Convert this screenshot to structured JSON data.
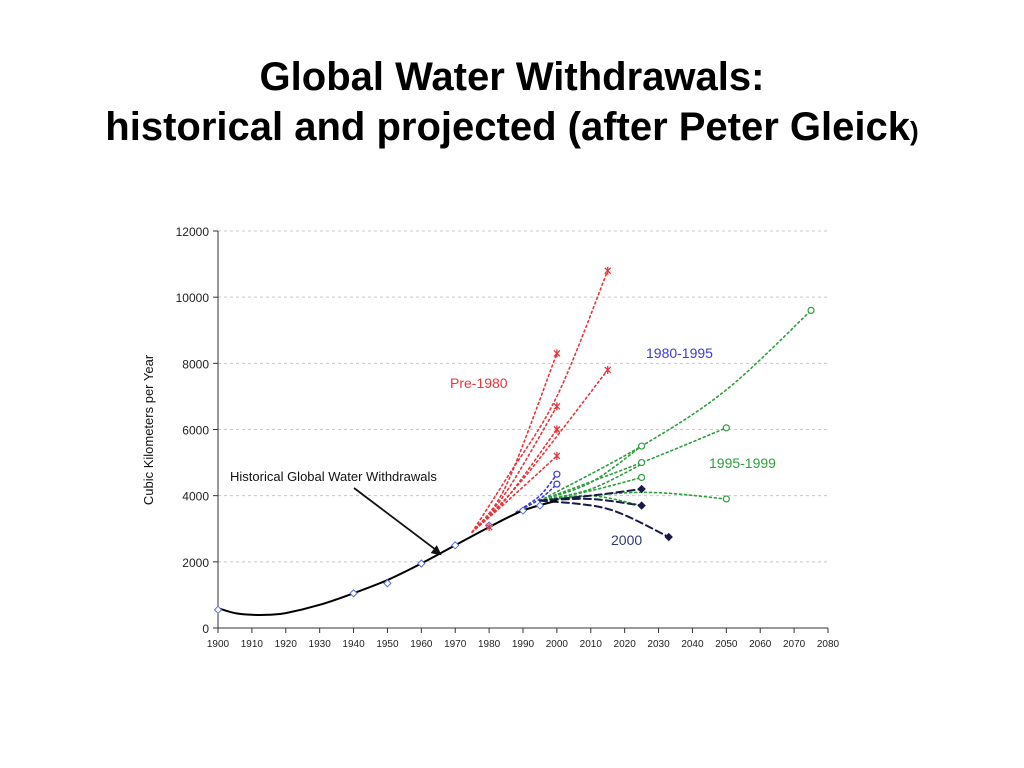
{
  "slide": {
    "title_line1": "Global Water Withdrawals:",
    "title_line2": "historical and projected (after Peter Gleick",
    "title_close_paren": ")"
  },
  "chart_data": {
    "type": "line",
    "title": "",
    "xlabel": "",
    "ylabel": "Cubic Kilometers per Year",
    "xlim": [
      1900,
      2080
    ],
    "ylim": [
      0,
      12000
    ],
    "x_ticks": [
      1900,
      1910,
      1920,
      1930,
      1940,
      1950,
      1960,
      1970,
      1980,
      1990,
      2000,
      2010,
      2020,
      2030,
      2040,
      2050,
      2060,
      2070,
      2080
    ],
    "y_ticks": [
      0,
      2000,
      4000,
      6000,
      8000,
      10000,
      12000
    ],
    "grid": true,
    "colors": {
      "historical": "#000000",
      "pre1980": "#e8353a",
      "p1980_1995": "#3b3bd6",
      "p1995_1999": "#2e9e3e",
      "p2000": "#1a1a4a"
    },
    "labels": {
      "historical": "Historical Global Water Withdrawals",
      "pre1980": "Pre-1980",
      "p1980_1995": "1980-1995",
      "p1995_1999": "1995-1999",
      "p2000": "2000"
    },
    "historical": {
      "name": "Historical Global Water Withdrawals",
      "x": [
        1900,
        1905,
        1910,
        1915,
        1920,
        1930,
        1940,
        1950,
        1960,
        1970,
        1980,
        1990,
        2000
      ],
      "y": [
        600,
        450,
        400,
        400,
        450,
        700,
        1050,
        1450,
        1950,
        2500,
        3050,
        3550,
        3850
      ]
    },
    "historical_markers": {
      "x": [
        1900,
        1940,
        1950,
        1960,
        1970,
        1980,
        1990,
        1995
      ],
      "y": [
        550,
        1050,
        1350,
        1950,
        2500,
        3100,
        3550,
        3700
      ]
    },
    "series": [
      {
        "group": "pre1980",
        "name": "Pre-1980",
        "x": [
          1975,
          1985,
          2000,
          2015
        ],
        "y": [
          2900,
          4500,
          7000,
          10800
        ]
      },
      {
        "group": "pre1980",
        "name": "Pre-1980",
        "x": [
          1975,
          1985,
          2000
        ],
        "y": [
          2900,
          4300,
          8300
        ]
      },
      {
        "group": "pre1980",
        "name": "Pre-1980",
        "x": [
          1975,
          1985,
          2000
        ],
        "y": [
          2900,
          4100,
          6700
        ]
      },
      {
        "group": "pre1980",
        "name": "Pre-1980",
        "x": [
          1975,
          1985,
          2000
        ],
        "y": [
          2900,
          3900,
          6000
        ]
      },
      {
        "group": "pre1980",
        "name": "Pre-1980",
        "x": [
          1975,
          1985,
          2000
        ],
        "y": [
          2900,
          3800,
          5200
        ]
      },
      {
        "group": "pre1980",
        "name": "Pre-1980",
        "x": [
          1975,
          1990,
          2015
        ],
        "y": [
          2900,
          4500,
          7800
        ]
      },
      {
        "group": "p1980_1995",
        "name": "1980-1995",
        "x": [
          1988,
          1995,
          2000
        ],
        "y": [
          3500,
          4000,
          4650
        ]
      },
      {
        "group": "p1980_1995",
        "name": "1980-1995",
        "x": [
          1988,
          1995,
          2000
        ],
        "y": [
          3500,
          3900,
          4350
        ]
      },
      {
        "group": "p1995_1999",
        "name": "1995-1999",
        "x": [
          1995,
          2025,
          2050,
          2075
        ],
        "y": [
          3850,
          5500,
          7200,
          9600
        ]
      },
      {
        "group": "p1995_1999",
        "name": "1995-1999",
        "x": [
          1995,
          2025,
          2050
        ],
        "y": [
          3850,
          5000,
          6050
        ]
      },
      {
        "group": "p1995_1999",
        "name": "1995-1999",
        "x": [
          1995,
          2010,
          2025
        ],
        "y": [
          3850,
          4400,
          5500
        ]
      },
      {
        "group": "p1995_1999",
        "name": "1995-1999",
        "x": [
          1995,
          2010,
          2025
        ],
        "y": [
          3850,
          4200,
          4950
        ]
      },
      {
        "group": "p1995_1999",
        "name": "1995-1999",
        "x": [
          1995,
          2010,
          2025
        ],
        "y": [
          3850,
          4150,
          4550
        ]
      },
      {
        "group": "p1995_1999",
        "name": "1995-1999",
        "x": [
          1995,
          2025,
          2050
        ],
        "y": [
          3850,
          4100,
          3900
        ]
      },
      {
        "group": "p1995_1999",
        "name": "1995-1999",
        "x": [
          1995,
          2010,
          2025
        ],
        "y": [
          3850,
          4000,
          3700
        ]
      },
      {
        "group": "p2000",
        "name": "2000",
        "x": [
          1995,
          2010,
          2025
        ],
        "y": [
          3850,
          4000,
          4200
        ]
      },
      {
        "group": "p2000",
        "name": "2000",
        "x": [
          1995,
          2010,
          2025
        ],
        "y": [
          3850,
          3900,
          3700
        ]
      },
      {
        "group": "p2000",
        "name": "2000",
        "x": [
          1995,
          2015,
          2033
        ],
        "y": [
          3850,
          3600,
          2750
        ]
      }
    ],
    "endpoint_markers": [
      {
        "group": "pre1980",
        "x": 2015,
        "y": 10800
      },
      {
        "group": "pre1980",
        "x": 2000,
        "y": 8300
      },
      {
        "group": "pre1980",
        "x": 2015,
        "y": 7800
      },
      {
        "group": "pre1980",
        "x": 2000,
        "y": 6700
      },
      {
        "group": "pre1980",
        "x": 2000,
        "y": 6000
      },
      {
        "group": "pre1980",
        "x": 2000,
        "y": 5200
      },
      {
        "group": "pre1980",
        "x": 1980,
        "y": 3050
      },
      {
        "group": "p1980_1995",
        "x": 2000,
        "y": 4650
      },
      {
        "group": "p1980_1995",
        "x": 2000,
        "y": 4350
      },
      {
        "group": "p1995_1999",
        "x": 2075,
        "y": 9600
      },
      {
        "group": "p1995_1999",
        "x": 2050,
        "y": 6050
      },
      {
        "group": "p1995_1999",
        "x": 2025,
        "y": 5500
      },
      {
        "group": "p1995_1999",
        "x": 2025,
        "y": 5000
      },
      {
        "group": "p1995_1999",
        "x": 2025,
        "y": 4550
      },
      {
        "group": "p1995_1999",
        "x": 2050,
        "y": 3900
      },
      {
        "group": "p2000",
        "x": 2025,
        "y": 4200
      },
      {
        "group": "p2000",
        "x": 2025,
        "y": 3700
      },
      {
        "group": "p2000",
        "x": 2033,
        "y": 2750
      }
    ],
    "annotation_arrow": {
      "label": "Historical Global Water Withdrawals",
      "points_to": {
        "x": 1966,
        "y": 2200
      }
    }
  }
}
